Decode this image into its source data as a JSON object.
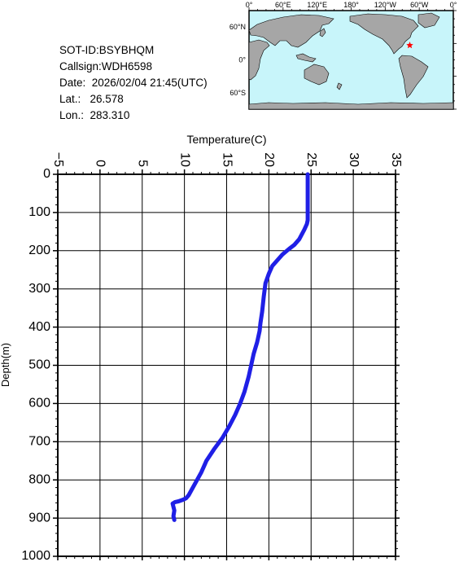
{
  "info": {
    "sot_id": "SOT-ID:BSYBHQM",
    "callsign": "Callsign:WDH6598",
    "date": "Date:  2026/02/04 21:45(UTC)",
    "lat": "Lat.:   26.578",
    "lon": "Lon.:  283.310"
  },
  "map": {
    "top_labels": [
      "0°",
      "60°E",
      "120°E",
      "180°",
      "120°W",
      "60°W",
      "0°"
    ],
    "right_labels": [
      "60°N",
      "0°",
      "60°S"
    ],
    "ocean_color": "#c8f5fa",
    "land_color": "#a6a6a6",
    "marker_color": "#ff0000",
    "marker_lon": 283.31,
    "marker_lat": 26.578
  },
  "chart_data": {
    "type": "line",
    "xlabel": "Temperature(C)",
    "ylabel": "Depth(m)",
    "xlim": [
      -5,
      35
    ],
    "ylim": [
      1000,
      0
    ],
    "xticks": [
      -5,
      0,
      5,
      10,
      15,
      20,
      25,
      30,
      35
    ],
    "yticks": [
      0,
      100,
      200,
      300,
      400,
      500,
      600,
      700,
      800,
      900,
      1000
    ],
    "grid": true,
    "line_color": "#1f1fe6",
    "series": [
      {
        "x": [
          24.6,
          24.6,
          24.6,
          24.5,
          24.2,
          23.6,
          23.0,
          22.4,
          21.6,
          21.0,
          20.4,
          20.0,
          19.6,
          19.4,
          19.2,
          19.0,
          18.9,
          18.6,
          18.2,
          17.9,
          17.6,
          17.1,
          16.6,
          16.0,
          15.3,
          14.5,
          13.5,
          12.6,
          12.0,
          11.5,
          11.0,
          10.5,
          10.2,
          9.8,
          9.3,
          8.9,
          8.6,
          8.8,
          8.7,
          8.8
        ],
        "y": [
          0,
          60,
          120,
          130,
          145,
          170,
          185,
          195,
          210,
          225,
          240,
          260,
          285,
          320,
          360,
          390,
          410,
          440,
          470,
          500,
          530,
          570,
          600,
          630,
          660,
          690,
          720,
          750,
          780,
          800,
          820,
          840,
          848,
          852,
          856,
          858,
          862,
          880,
          895,
          905
        ]
      }
    ]
  }
}
